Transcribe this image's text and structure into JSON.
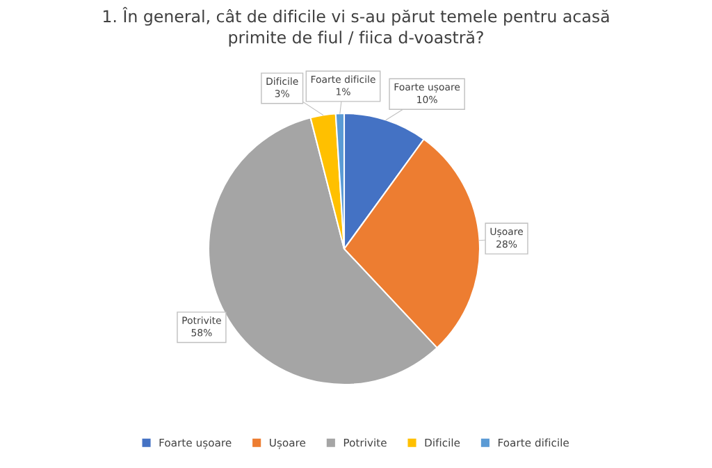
{
  "chart_data": {
    "type": "pie",
    "title": "1. În general, cât de dificile vi s-au părut temele pentru acasă\nprimite de fiul / fiica d-voastră?",
    "categories": [
      "Foarte ușoare",
      "Ușoare",
      "Potrivite",
      "Dificile",
      "Foarte dificile"
    ],
    "values": [
      10,
      28,
      58,
      3,
      1
    ],
    "colors": [
      "#4472c4",
      "#ed7d31",
      "#a5a5a5",
      "#ffc000",
      "#5b9bd5"
    ],
    "value_labels": [
      "10%",
      "28%",
      "58%",
      "3%",
      "1%"
    ],
    "legend": "bottom"
  }
}
